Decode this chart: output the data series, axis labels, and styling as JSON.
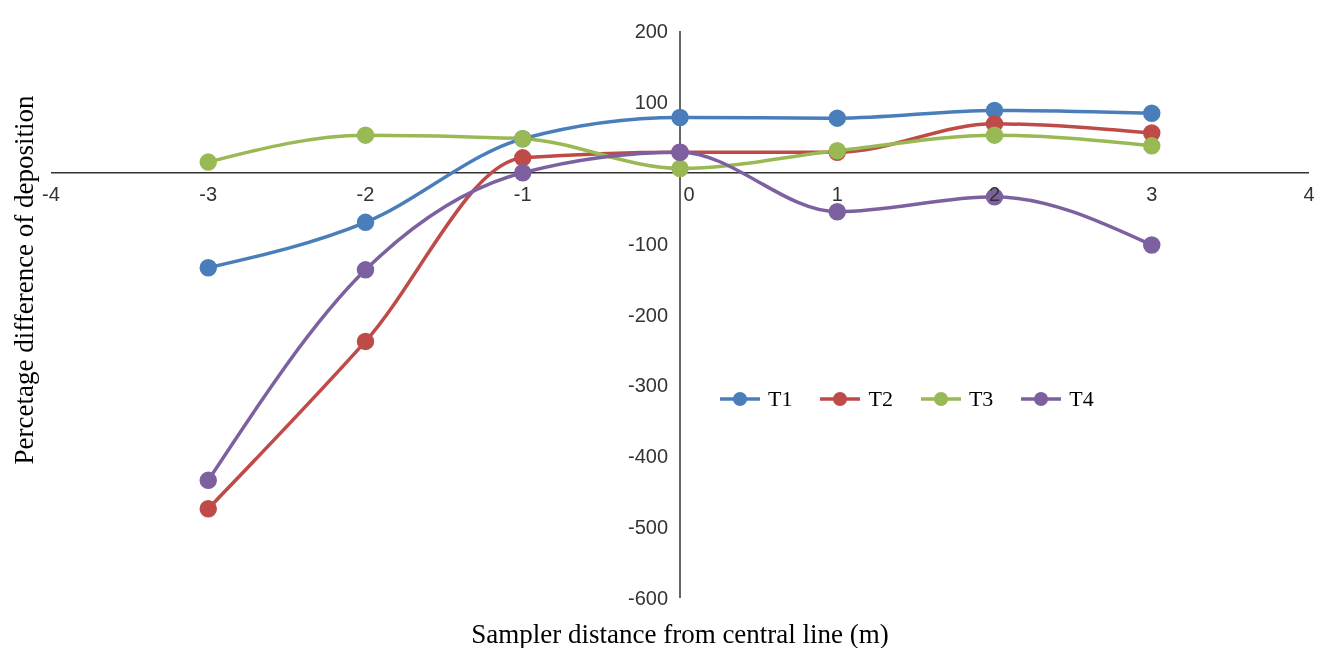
{
  "chart_data": {
    "type": "line",
    "xlabel": "Sampler distance  from central line  (m)",
    "ylabel": "Percetage difference  of deposition",
    "x": [
      -3,
      -2,
      -1,
      0,
      1,
      2,
      3
    ],
    "series": [
      {
        "name": "T1",
        "color": "#4a7ebb",
        "values": [
          -134,
          -70,
          48,
          78,
          77,
          88,
          84
        ]
      },
      {
        "name": "T2",
        "color": "#be4b48",
        "values": [
          -474,
          -238,
          21,
          29,
          29,
          69,
          56
        ]
      },
      {
        "name": "T3",
        "color": "#98b954",
        "values": [
          15,
          53,
          48,
          6,
          31,
          53,
          38
        ]
      },
      {
        "name": "T4",
        "color": "#7d60a0",
        "values": [
          -434,
          -137,
          0,
          29,
          -55,
          -34,
          -102
        ]
      }
    ],
    "xlim": [
      -4,
      4
    ],
    "xticks": [
      -4,
      -3,
      -2,
      -1,
      0,
      1,
      2,
      3,
      4
    ],
    "ylim": [
      -600,
      200
    ],
    "yticks": [
      -600,
      -500,
      -400,
      -300,
      -200,
      -100,
      {
        "value": 0,
        "label": null
      },
      100,
      200
    ],
    "grid": false,
    "legend": "right",
    "marker": "circle",
    "line_style": "solid"
  }
}
